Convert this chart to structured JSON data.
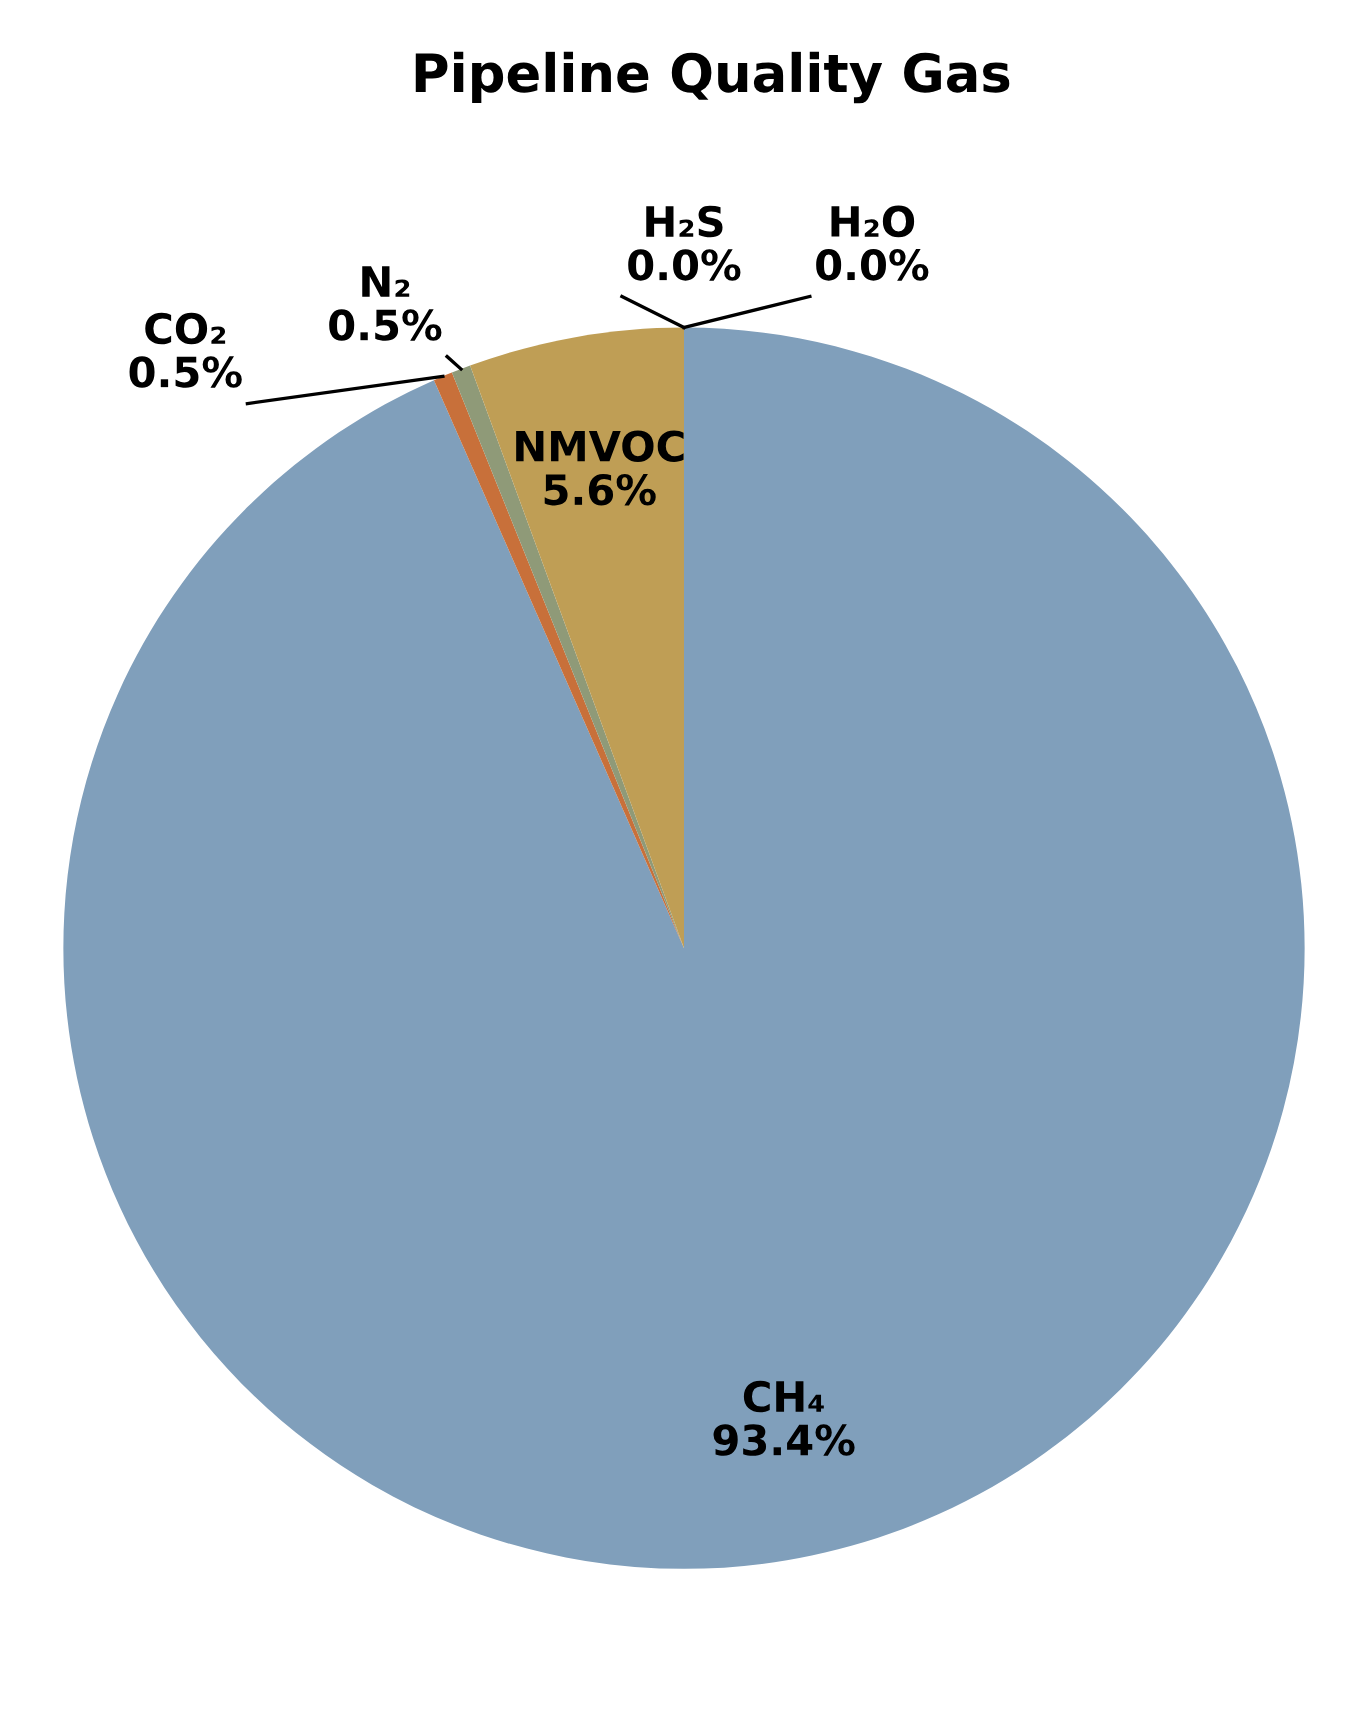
{
  "chart_data": {
    "type": "pie",
    "title": "Pipeline Quality Gas",
    "categories": [
      "CH₄",
      "CO₂",
      "N₂",
      "NMVOC",
      "H₂S",
      "H₂O"
    ],
    "values": [
      93.4,
      0.5,
      0.5,
      5.6,
      0.0,
      0.0
    ],
    "value_labels": [
      "93.4%",
      "0.5%",
      "0.5%",
      "5.6%",
      "0.0%",
      "0.0%"
    ],
    "colors": [
      "#809fbb",
      "#c8703a",
      "#8f9a78",
      "#bf9e55",
      "#7f7f7f",
      "#4f81bd"
    ]
  }
}
